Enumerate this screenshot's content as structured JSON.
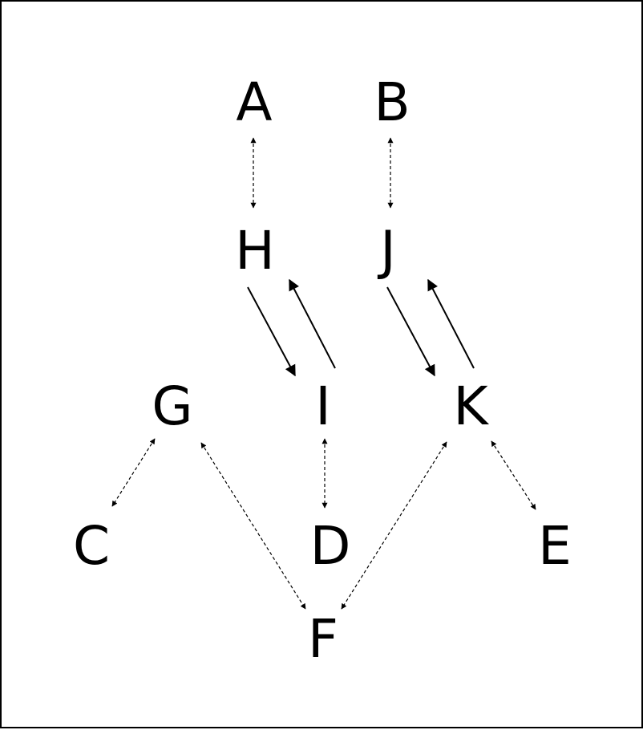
{
  "colors": {
    "stroke": "#000000",
    "background": "#ffffff"
  },
  "nodes": [
    {
      "id": "A",
      "label": "A"
    },
    {
      "id": "B",
      "label": "B"
    },
    {
      "id": "H",
      "label": "H"
    },
    {
      "id": "J",
      "label": "J"
    },
    {
      "id": "G",
      "label": "G"
    },
    {
      "id": "I",
      "label": "I"
    },
    {
      "id": "K",
      "label": "K"
    },
    {
      "id": "C",
      "label": "C"
    },
    {
      "id": "D",
      "label": "D"
    },
    {
      "id": "E",
      "label": "E"
    },
    {
      "id": "F",
      "label": "F"
    }
  ],
  "edges": [
    {
      "from": "A",
      "to": "H",
      "style": "dashed",
      "direction": "both"
    },
    {
      "from": "B",
      "to": "J",
      "style": "dashed",
      "direction": "both"
    },
    {
      "from": "H",
      "to": "I",
      "style": "solid",
      "direction": "forward"
    },
    {
      "from": "I",
      "to": "H",
      "style": "solid",
      "direction": "forward"
    },
    {
      "from": "J",
      "to": "K",
      "style": "solid",
      "direction": "forward"
    },
    {
      "from": "K",
      "to": "J",
      "style": "solid",
      "direction": "forward"
    },
    {
      "from": "G",
      "to": "C",
      "style": "dashed",
      "direction": "both"
    },
    {
      "from": "G",
      "to": "F",
      "style": "dashed",
      "direction": "both"
    },
    {
      "from": "I",
      "to": "D",
      "style": "dashed",
      "direction": "both"
    },
    {
      "from": "K",
      "to": "F",
      "style": "dashed",
      "direction": "both"
    },
    {
      "from": "K",
      "to": "E",
      "style": "dashed",
      "direction": "both"
    }
  ]
}
